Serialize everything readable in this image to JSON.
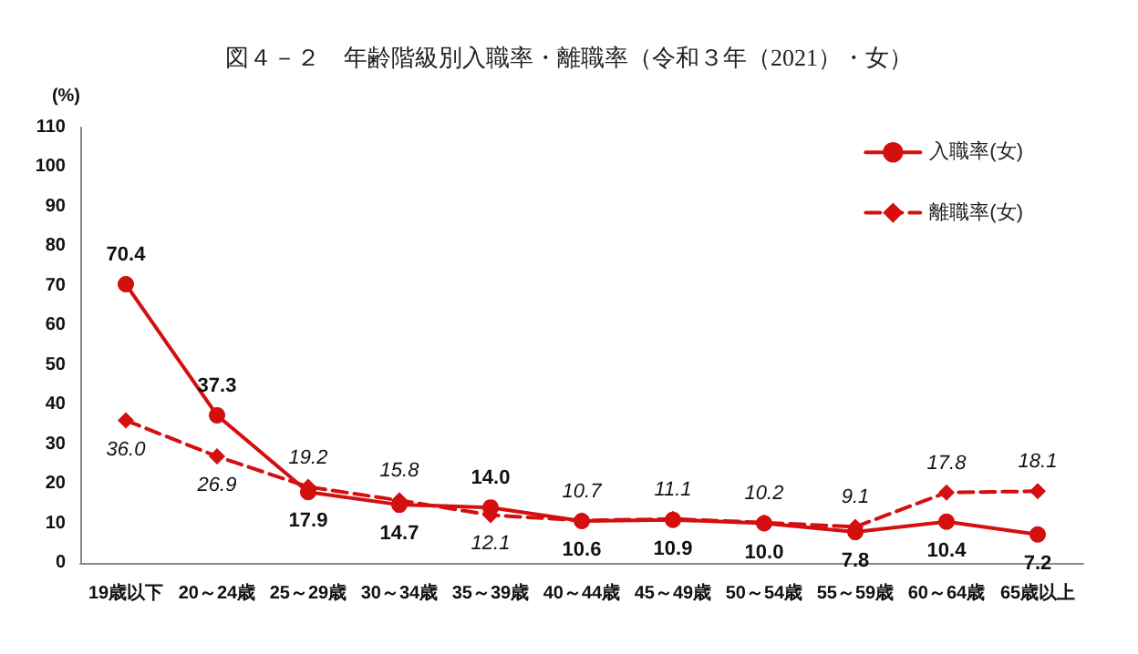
{
  "chart_data": {
    "type": "line",
    "title": "図４－２　年齢階級別入職率・離職率（令和３年（2021）・女）",
    "ylabel": "(%)",
    "categories": [
      "19歳以下",
      "20～24歳",
      "25～29歳",
      "30～34歳",
      "35～39歳",
      "40～44歳",
      "45～49歳",
      "50～54歳",
      "55～59歳",
      "60～64歳",
      "65歳以上"
    ],
    "series": [
      {
        "name": "入職率(女)",
        "color": "#d40f0f",
        "marker": "circle",
        "line_style": "solid",
        "values": [
          70.4,
          37.3,
          17.9,
          14.7,
          14.0,
          10.6,
          10.9,
          10.0,
          7.8,
          10.4,
          7.2
        ],
        "value_labels": [
          "70.4",
          "37.3",
          "17.9",
          "14.7",
          "14.0",
          "10.6",
          "10.9",
          "10.0",
          "7.8",
          "10.4",
          "7.2"
        ]
      },
      {
        "name": "離職率(女)",
        "color": "#d40f0f",
        "marker": "diamond",
        "line_style": "dashed",
        "values": [
          36.0,
          26.9,
          19.2,
          15.8,
          12.1,
          10.7,
          11.1,
          10.2,
          9.1,
          17.8,
          18.1
        ],
        "value_labels": [
          "36.0",
          "26.9",
          "19.2",
          "15.8",
          "12.1",
          "10.7",
          "11.1",
          "10.2",
          "9.1",
          "17.8",
          "18.1"
        ]
      }
    ],
    "ylim": [
      0,
      110
    ],
    "yticks": [
      0,
      10,
      20,
      30,
      40,
      50,
      60,
      70,
      80,
      90,
      100,
      110
    ],
    "grid": false,
    "legend": "top right"
  }
}
